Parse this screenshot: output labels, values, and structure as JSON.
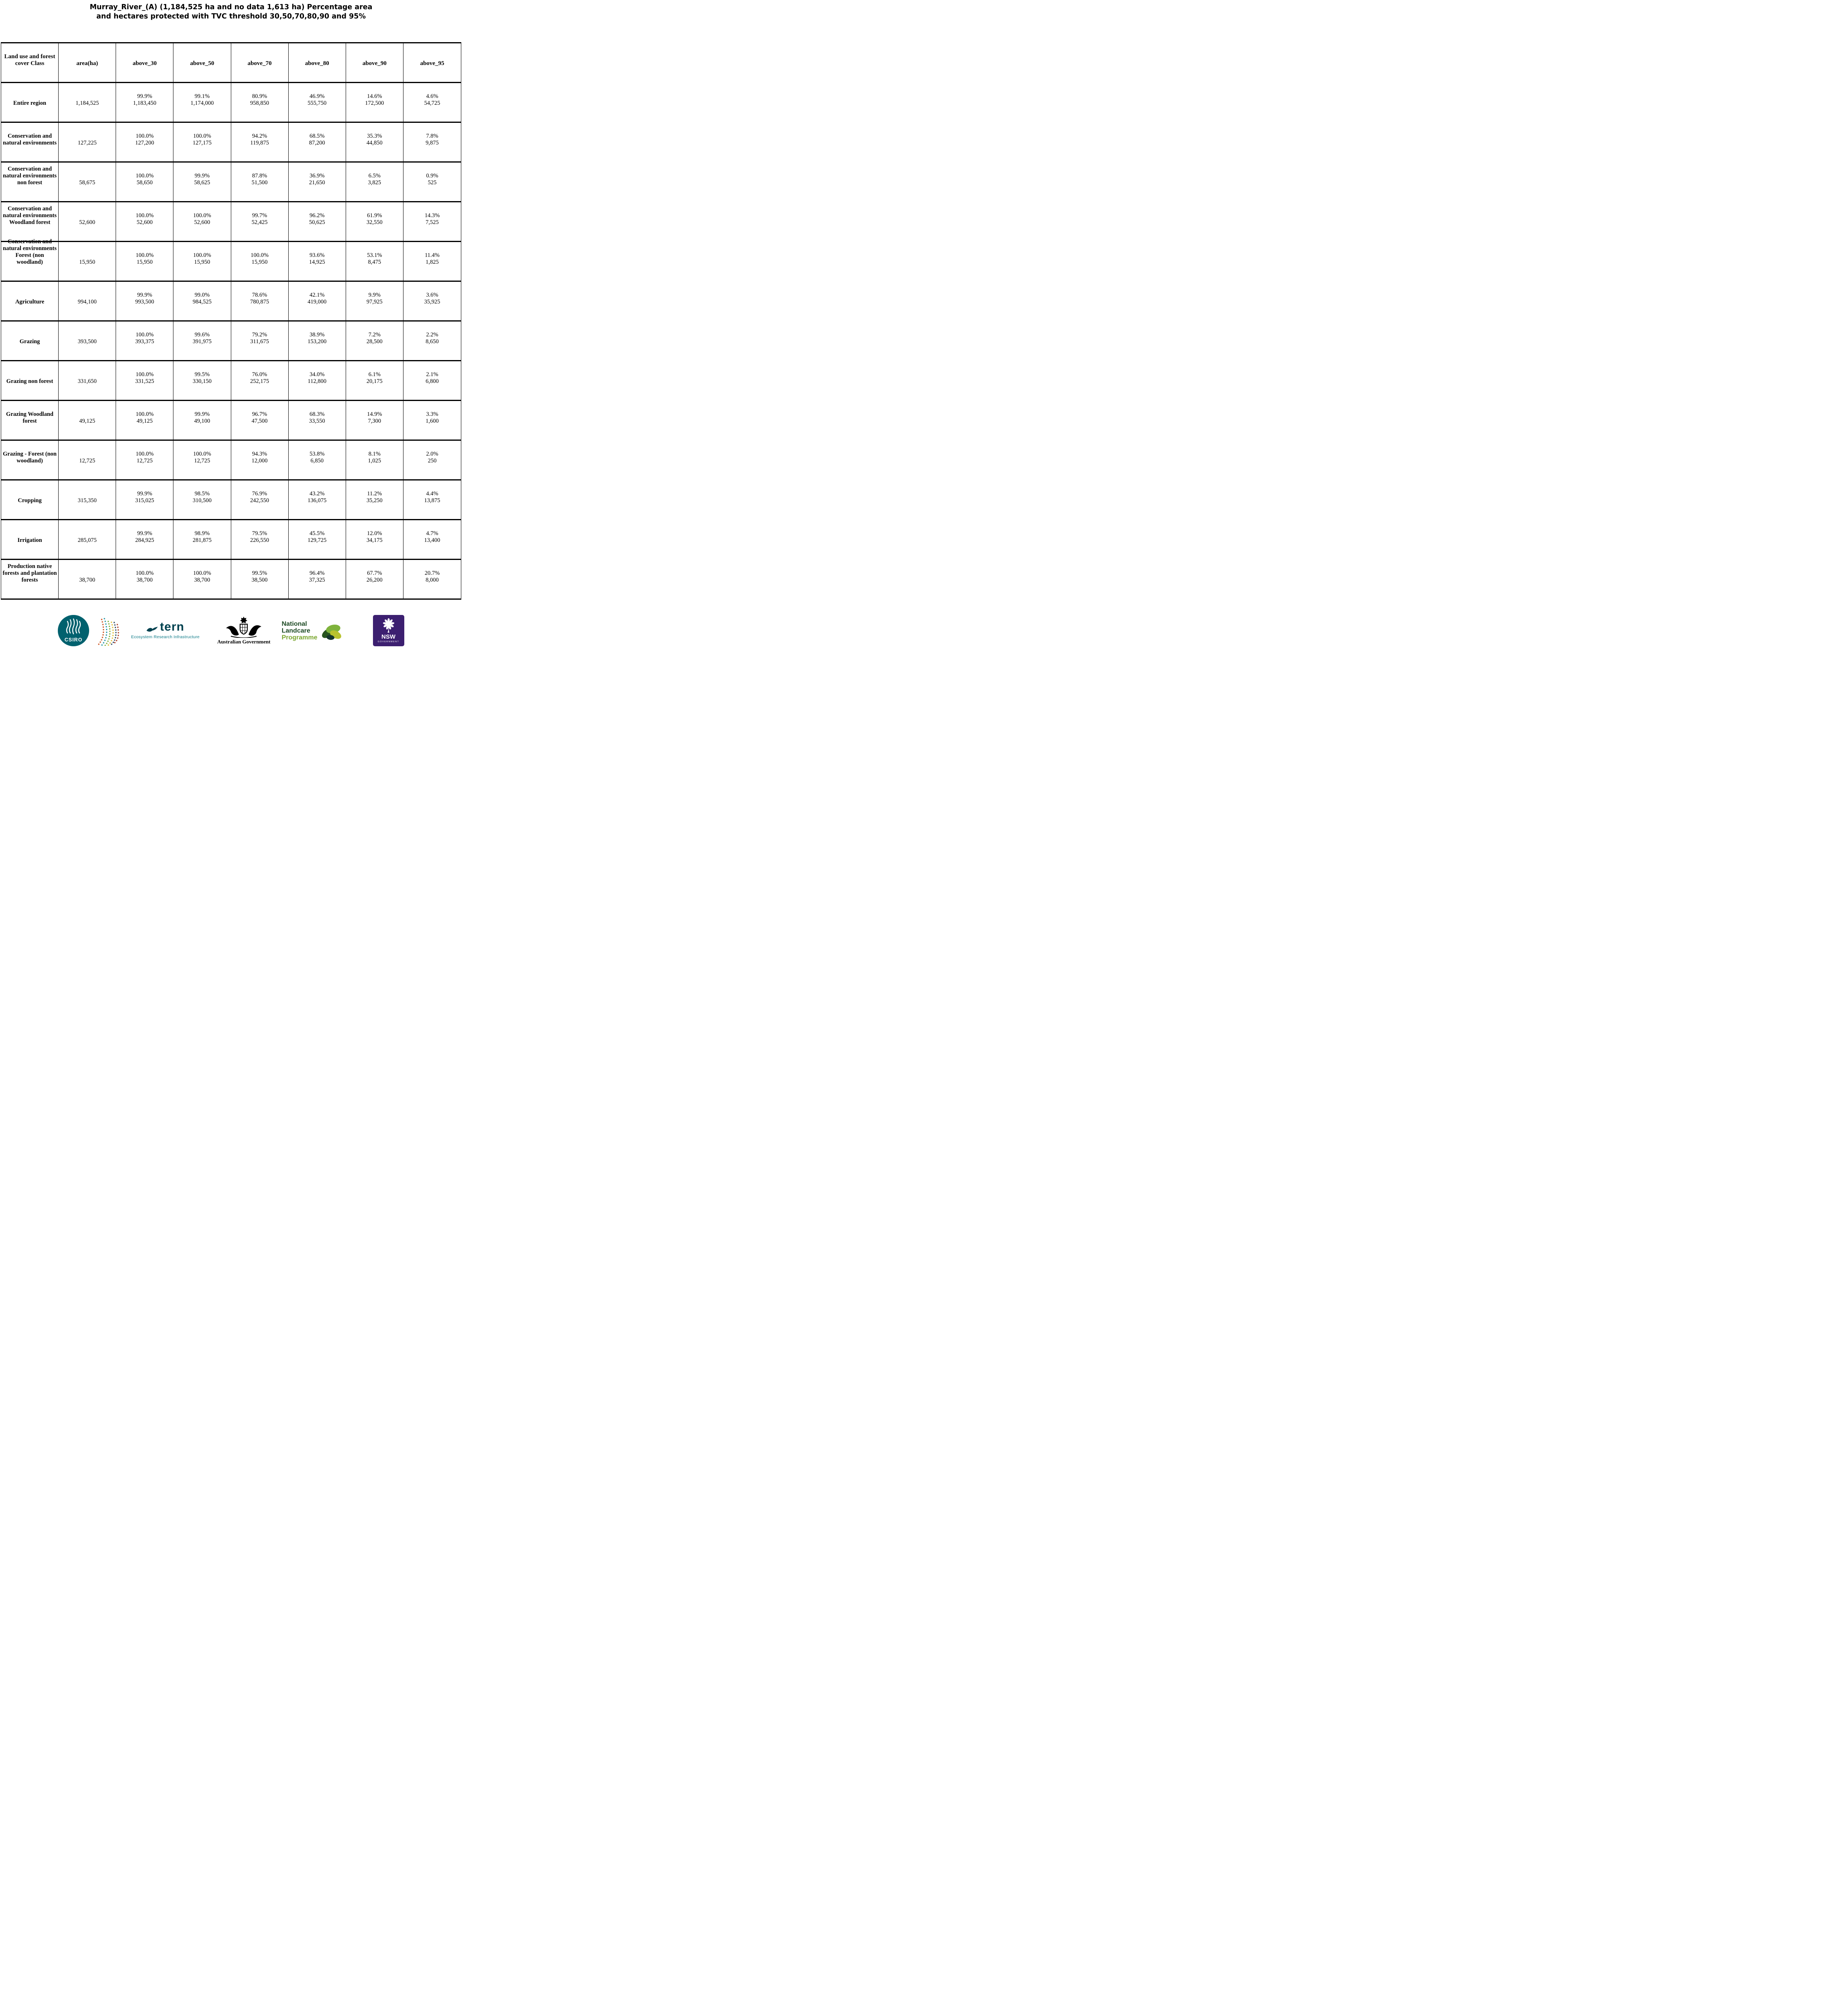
{
  "chart_data": {
    "type": "table",
    "title": "Murray_River_(A) (1,184,525 ha and no data 1,613 ha) Percentage area and hectares protected with TVC threshold 30,50,70,80,90 and 95%",
    "title_lines": [
      "Murray_River_(A) (1,184,525 ha and no data 1,613 ha) Percentage area",
      "and hectares protected with TVC threshold 30,50,70,80,90 and 95%"
    ],
    "columns": [
      "Land use and forest cover Class",
      "area(ha)",
      "above_30",
      "above_50",
      "above_70",
      "above_80",
      "above_90",
      "above_95"
    ],
    "rows": [
      {
        "label": "Entire region",
        "area": "1,184,525",
        "values": [
          {
            "pct": "99.9%",
            "ha": "1,183,450"
          },
          {
            "pct": "99.1%",
            "ha": "1,174,000"
          },
          {
            "pct": "80.9%",
            "ha": "958,850"
          },
          {
            "pct": "46.9%",
            "ha": "555,750"
          },
          {
            "pct": "14.6%",
            "ha": "172,500"
          },
          {
            "pct": "4.6%",
            "ha": "54,725"
          }
        ]
      },
      {
        "label": "Conservation and natural environments",
        "area": "127,225",
        "values": [
          {
            "pct": "100.0%",
            "ha": "127,200"
          },
          {
            "pct": "100.0%",
            "ha": "127,175"
          },
          {
            "pct": "94.2%",
            "ha": "119,875"
          },
          {
            "pct": "68.5%",
            "ha": "87,200"
          },
          {
            "pct": "35.3%",
            "ha": "44,850"
          },
          {
            "pct": "7.8%",
            "ha": "9,875"
          }
        ]
      },
      {
        "label": "Conservation and natural environments non forest",
        "area": "58,675",
        "values": [
          {
            "pct": "100.0%",
            "ha": "58,650"
          },
          {
            "pct": "99.9%",
            "ha": "58,625"
          },
          {
            "pct": "87.8%",
            "ha": "51,500"
          },
          {
            "pct": "36.9%",
            "ha": "21,650"
          },
          {
            "pct": "6.5%",
            "ha": "3,825"
          },
          {
            "pct": "0.9%",
            "ha": "525"
          }
        ]
      },
      {
        "label": "Conservation and natural environments Woodland forest",
        "area": "52,600",
        "values": [
          {
            "pct": "100.0%",
            "ha": "52,600"
          },
          {
            "pct": "100.0%",
            "ha": "52,600"
          },
          {
            "pct": "99.7%",
            "ha": "52,425"
          },
          {
            "pct": "96.2%",
            "ha": "50,625"
          },
          {
            "pct": "61.9%",
            "ha": "32,550"
          },
          {
            "pct": "14.3%",
            "ha": "7,525"
          }
        ]
      },
      {
        "label": "Conservation and natural environments Forest (non woodland)",
        "area": "15,950",
        "values": [
          {
            "pct": "100.0%",
            "ha": "15,950"
          },
          {
            "pct": "100.0%",
            "ha": "15,950"
          },
          {
            "pct": "100.0%",
            "ha": "15,950"
          },
          {
            "pct": "93.6%",
            "ha": "14,925"
          },
          {
            "pct": "53.1%",
            "ha": "8,475"
          },
          {
            "pct": "11.4%",
            "ha": "1,825"
          }
        ]
      },
      {
        "label": "Agriculture",
        "area": "994,100",
        "values": [
          {
            "pct": "99.9%",
            "ha": "993,500"
          },
          {
            "pct": "99.0%",
            "ha": "984,525"
          },
          {
            "pct": "78.6%",
            "ha": "780,875"
          },
          {
            "pct": "42.1%",
            "ha": "419,000"
          },
          {
            "pct": "9.9%",
            "ha": "97,925"
          },
          {
            "pct": "3.6%",
            "ha": "35,925"
          }
        ]
      },
      {
        "label": "Grazing",
        "area": "393,500",
        "values": [
          {
            "pct": "100.0%",
            "ha": "393,375"
          },
          {
            "pct": "99.6%",
            "ha": "391,975"
          },
          {
            "pct": "79.2%",
            "ha": "311,675"
          },
          {
            "pct": "38.9%",
            "ha": "153,200"
          },
          {
            "pct": "7.2%",
            "ha": "28,500"
          },
          {
            "pct": "2.2%",
            "ha": "8,650"
          }
        ]
      },
      {
        "label": "Grazing non forest",
        "area": "331,650",
        "values": [
          {
            "pct": "100.0%",
            "ha": "331,525"
          },
          {
            "pct": "99.5%",
            "ha": "330,150"
          },
          {
            "pct": "76.0%",
            "ha": "252,175"
          },
          {
            "pct": "34.0%",
            "ha": "112,800"
          },
          {
            "pct": "6.1%",
            "ha": "20,175"
          },
          {
            "pct": "2.1%",
            "ha": "6,800"
          }
        ]
      },
      {
        "label": "Grazing Woodland forest",
        "area": "49,125",
        "values": [
          {
            "pct": "100.0%",
            "ha": "49,125"
          },
          {
            "pct": "99.9%",
            "ha": "49,100"
          },
          {
            "pct": "96.7%",
            "ha": "47,500"
          },
          {
            "pct": "68.3%",
            "ha": "33,550"
          },
          {
            "pct": "14.9%",
            "ha": "7,300"
          },
          {
            "pct": "3.3%",
            "ha": "1,600"
          }
        ]
      },
      {
        "label": "Grazing - Forest (non woodland)",
        "area": "12,725",
        "values": [
          {
            "pct": "100.0%",
            "ha": "12,725"
          },
          {
            "pct": "100.0%",
            "ha": "12,725"
          },
          {
            "pct": "94.3%",
            "ha": "12,000"
          },
          {
            "pct": "53.8%",
            "ha": "6,850"
          },
          {
            "pct": "8.1%",
            "ha": "1,025"
          },
          {
            "pct": "2.0%",
            "ha": "250"
          }
        ]
      },
      {
        "label": "Cropping",
        "area": "315,350",
        "values": [
          {
            "pct": "99.9%",
            "ha": "315,025"
          },
          {
            "pct": "98.5%",
            "ha": "310,500"
          },
          {
            "pct": "76.9%",
            "ha": "242,550"
          },
          {
            "pct": "43.2%",
            "ha": "136,075"
          },
          {
            "pct": "11.2%",
            "ha": "35,250"
          },
          {
            "pct": "4.4%",
            "ha": "13,875"
          }
        ]
      },
      {
        "label": "Irrigation",
        "area": "285,075",
        "values": [
          {
            "pct": "99.9%",
            "ha": "284,925"
          },
          {
            "pct": "98.9%",
            "ha": "281,875"
          },
          {
            "pct": "79.5%",
            "ha": "226,550"
          },
          {
            "pct": "45.5%",
            "ha": "129,725"
          },
          {
            "pct": "12.0%",
            "ha": "34,175"
          },
          {
            "pct": "4.7%",
            "ha": "13,400"
          }
        ]
      },
      {
        "label": "Production native forests and plantation forests",
        "area": "38,700",
        "values": [
          {
            "pct": "100.0%",
            "ha": "38,700"
          },
          {
            "pct": "100.0%",
            "ha": "38,700"
          },
          {
            "pct": "99.5%",
            "ha": "38,500"
          },
          {
            "pct": "96.4%",
            "ha": "37,325"
          },
          {
            "pct": "67.7%",
            "ha": "26,200"
          },
          {
            "pct": "20.7%",
            "ha": "8,000"
          }
        ]
      }
    ]
  },
  "footer": {
    "csiro": {
      "label": "CSIRO",
      "color": "#00616e"
    },
    "tern": {
      "name": "tern",
      "tagline": "Ecosystem Research Infrastructure",
      "color": "#00414f",
      "tagline_color": "#0d7a87"
    },
    "australian_government": {
      "label": "Australian Government"
    },
    "landcare": {
      "line1": "National",
      "line2": "Landcare",
      "line3": "Programme",
      "color_dark": "#1d4a24",
      "color_light": "#7aa62f"
    },
    "nsw": {
      "name": "NSW",
      "sub": "GOVERNMENT",
      "color": "#3c1f70"
    }
  }
}
